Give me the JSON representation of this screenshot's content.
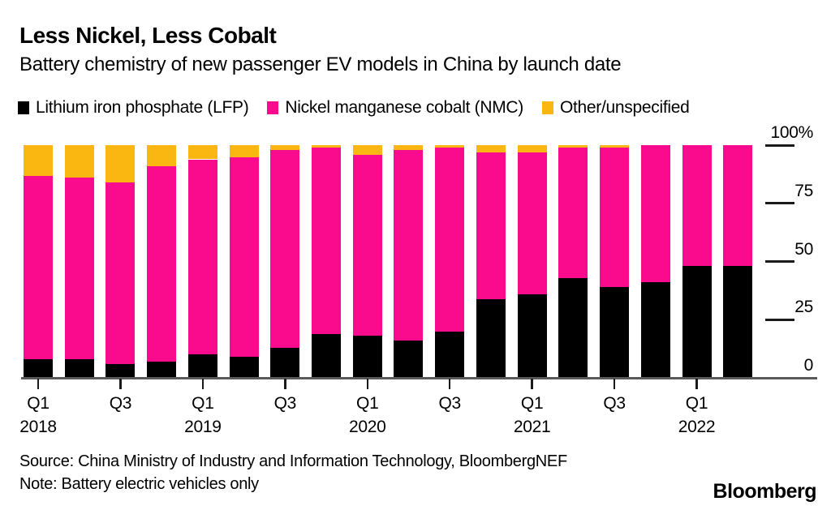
{
  "header": {
    "title": "Less Nickel, Less Cobalt",
    "subtitle": "Battery chemistry of new passenger EV models in China by launch date"
  },
  "legend": [
    {
      "name": "lfp",
      "label": "Lithium iron phosphate (LFP)",
      "color": "#000000"
    },
    {
      "name": "nmc",
      "label": "Nickel manganese cobalt (NMC)",
      "color": "#FA0A8C"
    },
    {
      "name": "other",
      "label": "Other/unspecified",
      "color": "#FAB711"
    }
  ],
  "chart_data": {
    "type": "bar",
    "stacked": true,
    "unit": "%",
    "grid": false,
    "legend_position": "top",
    "ylim": [
      0,
      100
    ],
    "categories": [
      "Q1 2018",
      "Q2 2018",
      "Q3 2018",
      "Q4 2018",
      "Q1 2019",
      "Q2 2019",
      "Q3 2019",
      "Q4 2019",
      "Q1 2020",
      "Q2 2020",
      "Q3 2020",
      "Q4 2020",
      "Q1 2021",
      "Q2 2021",
      "Q3 2021",
      "Q4 2021",
      "Q1 2022",
      "Q2 2022"
    ],
    "series": [
      {
        "name": "Lithium iron phosphate (LFP)",
        "key": "lfp",
        "color": "#000000",
        "values": [
          8,
          8,
          6,
          7,
          10,
          9,
          13,
          19,
          18,
          16,
          20,
          34,
          36,
          43,
          39,
          41,
          48,
          48
        ]
      },
      {
        "name": "Nickel manganese cobalt (NMC)",
        "key": "nmc",
        "color": "#FA0A8C",
        "values": [
          79,
          78,
          78,
          84,
          84,
          86,
          85,
          80,
          78,
          82,
          79,
          63,
          61,
          56,
          60,
          59,
          52,
          52
        ]
      },
      {
        "name": "Other/unspecified",
        "key": "other",
        "color": "#FAB711",
        "values": [
          13,
          14,
          16,
          9,
          6,
          5,
          2,
          1,
          4,
          2,
          1,
          3,
          3,
          1,
          1,
          0,
          0,
          0
        ]
      }
    ],
    "y_ticks": [
      {
        "value": 100,
        "label": "100%"
      },
      {
        "value": 75,
        "label": "75"
      },
      {
        "value": 50,
        "label": "50"
      },
      {
        "value": 25,
        "label": "25"
      },
      {
        "value": 0,
        "label": "0"
      }
    ],
    "x_ticks": [
      {
        "index": 0,
        "label": "Q1",
        "year": "2018"
      },
      {
        "index": 2,
        "label": "Q3"
      },
      {
        "index": 4,
        "label": "Q1",
        "year": "2019"
      },
      {
        "index": 6,
        "label": "Q3"
      },
      {
        "index": 8,
        "label": "Q1",
        "year": "2020"
      },
      {
        "index": 10,
        "label": "Q3"
      },
      {
        "index": 12,
        "label": "Q1",
        "year": "2021"
      },
      {
        "index": 14,
        "label": "Q3"
      },
      {
        "index": 16,
        "label": "Q1",
        "year": "2022"
      }
    ]
  },
  "footer": {
    "source": "Source: China Ministry of Industry and Information Technology, BloombergNEF",
    "note": "Note: Battery electric vehicles only",
    "brand": "Bloomberg"
  }
}
